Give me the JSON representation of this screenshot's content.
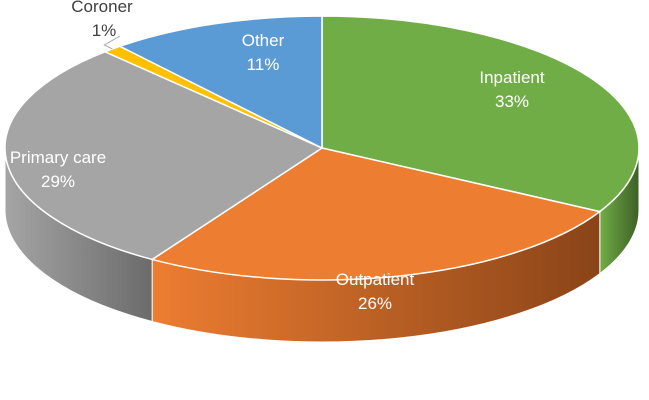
{
  "chart_data": {
    "type": "pie",
    "style": "3d",
    "title": "",
    "slices": [
      {
        "label": "Inpatient",
        "value": 33,
        "value_label": "33%",
        "color": "#70ad47",
        "side_color": "#3e5f26"
      },
      {
        "label": "Outpatient",
        "value": 26,
        "value_label": "26%",
        "color": "#ed7d31",
        "side_color": "#8a4418"
      },
      {
        "label": "Primary care",
        "value": 29,
        "value_label": "29%",
        "color": "#a5a5a5",
        "side_color": "#6b6b6b"
      },
      {
        "label": "Coroner",
        "value": 1,
        "value_label": "1%",
        "color": "#ffc000",
        "side_color": "#a07800"
      },
      {
        "label": "Other",
        "value": 11,
        "value_label": "11%",
        "color": "#5b9bd5",
        "side_color": "#2f5f8c"
      }
    ]
  }
}
